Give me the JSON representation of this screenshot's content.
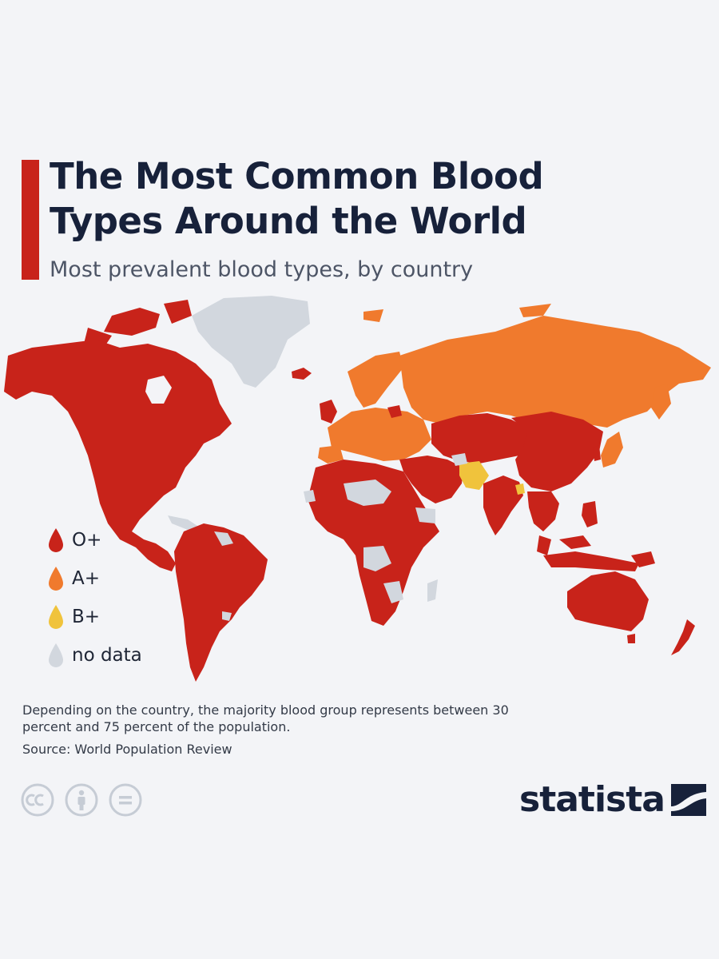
{
  "header": {
    "title_line1": "The Most Common Blood",
    "title_line2": "Types Around the World",
    "subtitle": "Most prevalent blood types, by country"
  },
  "legend": [
    {
      "label": "O+",
      "color": "#c8231a"
    },
    {
      "label": "A+",
      "color": "#f07a2d"
    },
    {
      "label": "B+",
      "color": "#f0c33c"
    },
    {
      "label": "no data",
      "color": "#d2d7de"
    }
  ],
  "map": {
    "colors": {
      "o_pos": "#c8231a",
      "a_pos": "#f07a2d",
      "b_pos": "#f0c33c",
      "no_data": "#d2d7de"
    }
  },
  "footer": {
    "note": "Depending on the country, the majority blood group represents between 30 percent and 75 percent of the population.",
    "source": "Source: World Population Review",
    "brand": "statista"
  }
}
